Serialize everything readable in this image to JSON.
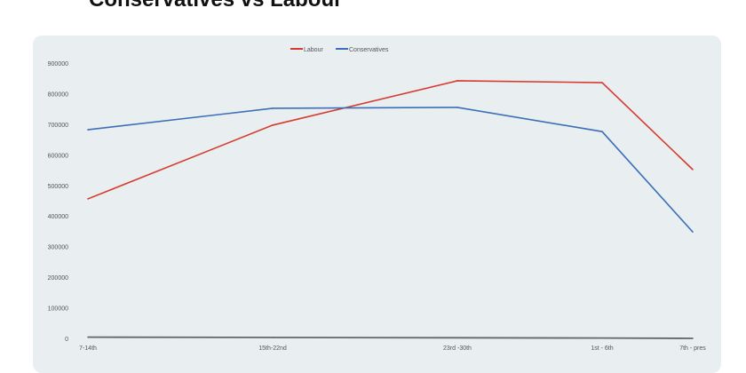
{
  "title": "Conservatives vs Labour",
  "chart_data": {
    "type": "line",
    "title": "Conservatives vs Labour",
    "xlabel": "",
    "ylabel": "",
    "categories": [
      "7-14th",
      "15th-22nd",
      "23rd -30th",
      "1st - 6th",
      "7th - pres"
    ],
    "ylim": [
      0,
      900000
    ],
    "yticks": [
      "0",
      "100000",
      "200000",
      "300000",
      "400000",
      "500000",
      "600000",
      "700000",
      "800000",
      "900000"
    ],
    "grid": false,
    "legend": "top-center",
    "series": [
      {
        "name": "Labour",
        "color": "#d63a2e",
        "values": [
          456000,
          697000,
          842000,
          836000,
          552000
        ]
      },
      {
        "name": "Conservatives",
        "color": "#3b6fb8",
        "values": [
          682000,
          752000,
          755000,
          676000,
          348000
        ]
      },
      {
        "name": "",
        "color": "#666666",
        "values": [
          4000,
          3000,
          2000,
          1000,
          0
        ]
      }
    ]
  }
}
